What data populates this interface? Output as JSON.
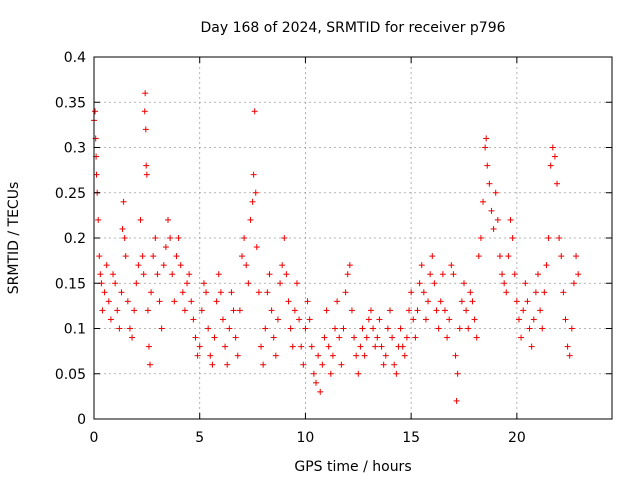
{
  "chart_data": {
    "type": "scatter",
    "title": "Day 168 of 2024, SRMTID for receiver p796",
    "xlabel": "GPS time / hours",
    "ylabel": "SRMTID / TECUs",
    "xlim": [
      0,
      24.5
    ],
    "ylim": [
      0,
      0.4
    ],
    "xticks": [
      0,
      5,
      10,
      15,
      20
    ],
    "xtick_labels": [
      "0",
      "5",
      "10",
      "15",
      "20"
    ],
    "yticks": [
      0,
      0.05,
      0.1,
      0.15,
      0.2,
      0.25,
      0.3,
      0.35,
      0.4
    ],
    "ytick_labels": [
      "0",
      "0.05",
      "0.1",
      "0.15",
      "0.2",
      "0.25",
      "0.3",
      "0.35",
      "0.4"
    ],
    "grid": true,
    "marker": "plus",
    "series": [
      {
        "name": "SRMTID",
        "color": "#ee0000",
        "points": [
          [
            0.0,
            0.33
          ],
          [
            0.05,
            0.34
          ],
          [
            0.08,
            0.31
          ],
          [
            0.1,
            0.29
          ],
          [
            0.12,
            0.27
          ],
          [
            0.15,
            0.25
          ],
          [
            0.2,
            0.22
          ],
          [
            0.25,
            0.18
          ],
          [
            0.3,
            0.16
          ],
          [
            0.35,
            0.15
          ],
          [
            0.4,
            0.12
          ],
          [
            0.5,
            0.14
          ],
          [
            0.6,
            0.17
          ],
          [
            0.7,
            0.13
          ],
          [
            0.8,
            0.11
          ],
          [
            0.9,
            0.16
          ],
          [
            1.0,
            0.15
          ],
          [
            1.1,
            0.12
          ],
          [
            1.2,
            0.1
          ],
          [
            1.3,
            0.14
          ],
          [
            1.35,
            0.21
          ],
          [
            1.4,
            0.24
          ],
          [
            1.45,
            0.2
          ],
          [
            1.5,
            0.18
          ],
          [
            1.6,
            0.13
          ],
          [
            1.7,
            0.1
          ],
          [
            1.8,
            0.09
          ],
          [
            1.9,
            0.12
          ],
          [
            2.0,
            0.15
          ],
          [
            2.1,
            0.17
          ],
          [
            2.2,
            0.22
          ],
          [
            2.3,
            0.18
          ],
          [
            2.35,
            0.16
          ],
          [
            2.4,
            0.34
          ],
          [
            2.42,
            0.36
          ],
          [
            2.45,
            0.32
          ],
          [
            2.47,
            0.28
          ],
          [
            2.5,
            0.27
          ],
          [
            2.55,
            0.12
          ],
          [
            2.6,
            0.08
          ],
          [
            2.65,
            0.06
          ],
          [
            2.7,
            0.14
          ],
          [
            2.8,
            0.18
          ],
          [
            2.9,
            0.2
          ],
          [
            3.0,
            0.16
          ],
          [
            3.1,
            0.13
          ],
          [
            3.2,
            0.1
          ],
          [
            3.3,
            0.17
          ],
          [
            3.4,
            0.19
          ],
          [
            3.5,
            0.22
          ],
          [
            3.6,
            0.2
          ],
          [
            3.7,
            0.16
          ],
          [
            3.8,
            0.13
          ],
          [
            3.9,
            0.18
          ],
          [
            4.0,
            0.2
          ],
          [
            4.1,
            0.17
          ],
          [
            4.2,
            0.14
          ],
          [
            4.3,
            0.12
          ],
          [
            4.4,
            0.15
          ],
          [
            4.5,
            0.16
          ],
          [
            4.6,
            0.13
          ],
          [
            4.7,
            0.11
          ],
          [
            4.8,
            0.09
          ],
          [
            4.9,
            0.07
          ],
          [
            5.0,
            0.08
          ],
          [
            5.1,
            0.12
          ],
          [
            5.2,
            0.15
          ],
          [
            5.3,
            0.14
          ],
          [
            5.4,
            0.1
          ],
          [
            5.5,
            0.07
          ],
          [
            5.6,
            0.06
          ],
          [
            5.7,
            0.09
          ],
          [
            5.8,
            0.13
          ],
          [
            5.9,
            0.16
          ],
          [
            6.0,
            0.14
          ],
          [
            6.1,
            0.11
          ],
          [
            6.2,
            0.08
          ],
          [
            6.3,
            0.06
          ],
          [
            6.4,
            0.1
          ],
          [
            6.5,
            0.14
          ],
          [
            6.6,
            0.12
          ],
          [
            6.7,
            0.09
          ],
          [
            6.8,
            0.07
          ],
          [
            6.9,
            0.12
          ],
          [
            7.0,
            0.18
          ],
          [
            7.1,
            0.2
          ],
          [
            7.2,
            0.17
          ],
          [
            7.3,
            0.15
          ],
          [
            7.4,
            0.22
          ],
          [
            7.5,
            0.24
          ],
          [
            7.55,
            0.27
          ],
          [
            7.6,
            0.34
          ],
          [
            7.65,
            0.25
          ],
          [
            7.7,
            0.19
          ],
          [
            7.8,
            0.14
          ],
          [
            7.9,
            0.08
          ],
          [
            8.0,
            0.06
          ],
          [
            8.1,
            0.1
          ],
          [
            8.2,
            0.14
          ],
          [
            8.3,
            0.16
          ],
          [
            8.4,
            0.12
          ],
          [
            8.5,
            0.09
          ],
          [
            8.6,
            0.07
          ],
          [
            8.7,
            0.11
          ],
          [
            8.8,
            0.15
          ],
          [
            8.9,
            0.17
          ],
          [
            9.0,
            0.2
          ],
          [
            9.1,
            0.16
          ],
          [
            9.2,
            0.13
          ],
          [
            9.3,
            0.1
          ],
          [
            9.4,
            0.08
          ],
          [
            9.5,
            0.12
          ],
          [
            9.6,
            0.15
          ],
          [
            9.7,
            0.11
          ],
          [
            9.8,
            0.08
          ],
          [
            9.9,
            0.06
          ],
          [
            10.0,
            0.1
          ],
          [
            10.1,
            0.13
          ],
          [
            10.2,
            0.11
          ],
          [
            10.3,
            0.08
          ],
          [
            10.4,
            0.05
          ],
          [
            10.5,
            0.04
          ],
          [
            10.6,
            0.07
          ],
          [
            10.7,
            0.03
          ],
          [
            10.8,
            0.06
          ],
          [
            10.9,
            0.09
          ],
          [
            11.0,
            0.12
          ],
          [
            11.1,
            0.08
          ],
          [
            11.2,
            0.05
          ],
          [
            11.3,
            0.07
          ],
          [
            11.4,
            0.1
          ],
          [
            11.5,
            0.13
          ],
          [
            11.6,
            0.09
          ],
          [
            11.7,
            0.06
          ],
          [
            11.8,
            0.1
          ],
          [
            11.9,
            0.14
          ],
          [
            12.0,
            0.16
          ],
          [
            12.1,
            0.17
          ],
          [
            12.2,
            0.12
          ],
          [
            12.3,
            0.09
          ],
          [
            12.4,
            0.07
          ],
          [
            12.5,
            0.05
          ],
          [
            12.6,
            0.08
          ],
          [
            12.7,
            0.1
          ],
          [
            12.8,
            0.07
          ],
          [
            12.9,
            0.09
          ],
          [
            13.0,
            0.11
          ],
          [
            13.1,
            0.12
          ],
          [
            13.2,
            0.1
          ],
          [
            13.3,
            0.08
          ],
          [
            13.4,
            0.09
          ],
          [
            13.5,
            0.11
          ],
          [
            13.6,
            0.08
          ],
          [
            13.7,
            0.06
          ],
          [
            13.8,
            0.07
          ],
          [
            13.9,
            0.1
          ],
          [
            14.0,
            0.12
          ],
          [
            14.1,
            0.09
          ],
          [
            14.2,
            0.06
          ],
          [
            14.3,
            0.05
          ],
          [
            14.4,
            0.08
          ],
          [
            14.5,
            0.1
          ],
          [
            14.6,
            0.08
          ],
          [
            14.7,
            0.07
          ],
          [
            14.8,
            0.09
          ],
          [
            14.9,
            0.12
          ],
          [
            15.0,
            0.14
          ],
          [
            15.1,
            0.11
          ],
          [
            15.2,
            0.09
          ],
          [
            15.3,
            0.12
          ],
          [
            15.4,
            0.15
          ],
          [
            15.5,
            0.17
          ],
          [
            15.6,
            0.14
          ],
          [
            15.7,
            0.11
          ],
          [
            15.8,
            0.13
          ],
          [
            15.9,
            0.16
          ],
          [
            16.0,
            0.18
          ],
          [
            16.1,
            0.15
          ],
          [
            16.2,
            0.12
          ],
          [
            16.3,
            0.1
          ],
          [
            16.4,
            0.13
          ],
          [
            16.5,
            0.16
          ],
          [
            16.6,
            0.12
          ],
          [
            16.7,
            0.09
          ],
          [
            16.8,
            0.11
          ],
          [
            16.9,
            0.17
          ],
          [
            17.0,
            0.16
          ],
          [
            17.1,
            0.07
          ],
          [
            17.15,
            0.02
          ],
          [
            17.2,
            0.05
          ],
          [
            17.3,
            0.1
          ],
          [
            17.4,
            0.13
          ],
          [
            17.5,
            0.15
          ],
          [
            17.6,
            0.12
          ],
          [
            17.7,
            0.1
          ],
          [
            17.8,
            0.14
          ],
          [
            17.9,
            0.13
          ],
          [
            18.0,
            0.11
          ],
          [
            18.1,
            0.09
          ],
          [
            18.2,
            0.18
          ],
          [
            18.3,
            0.2
          ],
          [
            18.4,
            0.24
          ],
          [
            18.5,
            0.3
          ],
          [
            18.55,
            0.31
          ],
          [
            18.6,
            0.28
          ],
          [
            18.7,
            0.26
          ],
          [
            18.8,
            0.23
          ],
          [
            18.9,
            0.21
          ],
          [
            19.0,
            0.25
          ],
          [
            19.1,
            0.22
          ],
          [
            19.2,
            0.18
          ],
          [
            19.3,
            0.16
          ],
          [
            19.4,
            0.15
          ],
          [
            19.5,
            0.14
          ],
          [
            19.6,
            0.18
          ],
          [
            19.7,
            0.22
          ],
          [
            19.8,
            0.2
          ],
          [
            19.9,
            0.16
          ],
          [
            20.0,
            0.13
          ],
          [
            20.1,
            0.11
          ],
          [
            20.2,
            0.09
          ],
          [
            20.3,
            0.12
          ],
          [
            20.4,
            0.15
          ],
          [
            20.5,
            0.13
          ],
          [
            20.6,
            0.1
          ],
          [
            20.7,
            0.08
          ],
          [
            20.8,
            0.11
          ],
          [
            20.9,
            0.14
          ],
          [
            21.0,
            0.16
          ],
          [
            21.1,
            0.12
          ],
          [
            21.2,
            0.1
          ],
          [
            21.3,
            0.14
          ],
          [
            21.4,
            0.17
          ],
          [
            21.5,
            0.2
          ],
          [
            21.6,
            0.28
          ],
          [
            21.7,
            0.3
          ],
          [
            21.8,
            0.29
          ],
          [
            21.9,
            0.26
          ],
          [
            22.0,
            0.2
          ],
          [
            22.1,
            0.18
          ],
          [
            22.2,
            0.14
          ],
          [
            22.3,
            0.11
          ],
          [
            22.4,
            0.08
          ],
          [
            22.5,
            0.07
          ],
          [
            22.6,
            0.1
          ],
          [
            22.7,
            0.15
          ],
          [
            22.8,
            0.18
          ],
          [
            22.9,
            0.16
          ]
        ]
      }
    ]
  }
}
